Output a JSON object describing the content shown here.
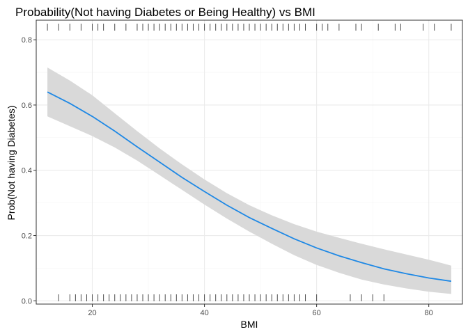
{
  "chart_data": {
    "type": "line",
    "title": "Probability(Not having Diabetes or Being Healthy) vs BMI",
    "xlabel": "BMI",
    "ylabel": "Prob(Not having Diabetes)",
    "xlim": [
      10,
      86
    ],
    "ylim": [
      -0.01,
      0.86
    ],
    "x_ticks": [
      20,
      40,
      60,
      80
    ],
    "x_tick_labels": [
      "20",
      "40",
      "60",
      "80"
    ],
    "y_ticks": [
      0.0,
      0.2,
      0.4,
      0.6,
      0.8
    ],
    "y_tick_labels": [
      "0.0",
      "0.2",
      "0.4",
      "0.6",
      "0.8"
    ],
    "grid": true,
    "legend": "none",
    "colors": {
      "line": "#1e88e5",
      "ribbon": "#d9d9d9",
      "panel_border": "#333333",
      "grid_major": "#ebebeb",
      "grid_minor": "#f5f5f5",
      "rug": "#4d4d4d"
    },
    "series": [
      {
        "x": [
          12,
          16,
          20,
          24,
          28,
          32,
          36,
          40,
          44,
          48,
          52,
          56,
          60,
          64,
          68,
          72,
          76,
          80,
          84
        ],
        "y": [
          0.64,
          0.605,
          0.565,
          0.52,
          0.472,
          0.425,
          0.378,
          0.335,
          0.293,
          0.255,
          0.222,
          0.19,
          0.162,
          0.138,
          0.117,
          0.098,
          0.083,
          0.07,
          0.06
        ],
        "lower": [
          0.565,
          0.535,
          0.505,
          0.47,
          0.43,
          0.385,
          0.34,
          0.295,
          0.252,
          0.212,
          0.175,
          0.14,
          0.11,
          0.086,
          0.065,
          0.05,
          0.038,
          0.028,
          0.021
        ],
        "upper": [
          0.715,
          0.675,
          0.63,
          0.575,
          0.52,
          0.467,
          0.418,
          0.372,
          0.33,
          0.293,
          0.262,
          0.235,
          0.212,
          0.193,
          0.175,
          0.158,
          0.142,
          0.126,
          0.108
        ]
      }
    ],
    "rug_top_x": [
      12,
      14,
      16,
      18,
      20,
      21,
      22,
      24,
      26,
      28,
      29,
      30,
      31,
      32,
      33,
      34,
      35,
      36,
      37,
      38,
      39,
      40,
      41,
      42,
      43,
      44,
      45,
      46,
      47,
      48,
      49,
      50,
      51,
      52,
      53,
      54,
      55,
      56,
      57,
      58,
      60,
      61,
      62,
      64,
      67,
      68,
      71,
      74,
      75,
      79,
      81,
      84
    ],
    "rug_bottom_x": [
      14,
      16,
      17,
      18,
      19,
      20,
      21,
      22,
      23,
      24,
      25,
      26,
      27,
      28,
      29,
      30,
      31,
      32,
      33,
      34,
      35,
      36,
      37,
      38,
      39,
      40,
      41,
      42,
      43,
      44,
      45,
      46,
      47,
      48,
      49,
      50,
      51,
      52,
      53,
      54,
      55,
      56,
      57,
      58,
      60,
      66,
      68,
      70,
      72
    ]
  }
}
